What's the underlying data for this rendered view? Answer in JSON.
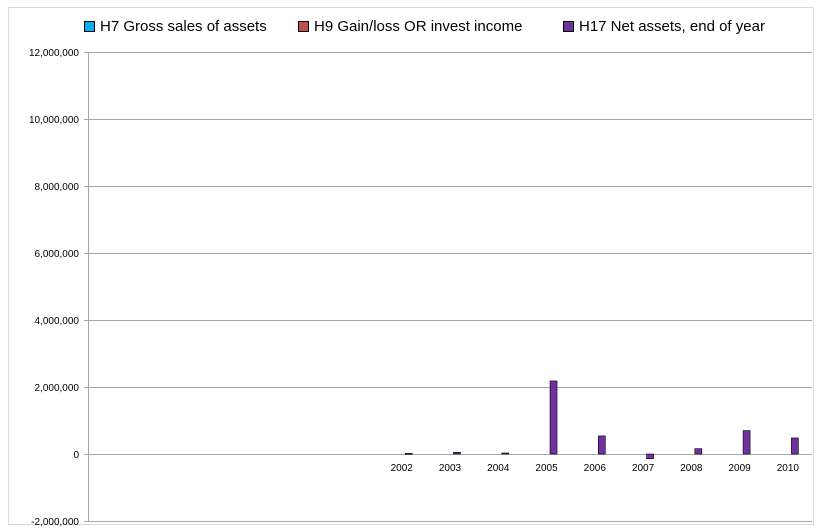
{
  "chart_data": {
    "type": "bar",
    "title": "",
    "xlabel": "",
    "ylabel": "",
    "categories": [
      "",
      "",
      "",
      "",
      "",
      "",
      "2002",
      "2003",
      "2004",
      "2005",
      "2006",
      "2007",
      "2008",
      "2009",
      "2010"
    ],
    "ylim": [
      -2000000,
      12000000
    ],
    "yticks": [
      -2000000,
      0,
      2000000,
      4000000,
      6000000,
      8000000,
      10000000,
      12000000
    ],
    "ytick_labels": [
      "-2,000,000",
      "0",
      "2,000,000",
      "4,000,000",
      "6,000,000",
      "8,000,000",
      "10,000,000",
      "12,000,000"
    ],
    "grid": true,
    "legend_position": "top",
    "series": [
      {
        "name": "H7 Gross sales of assets",
        "color": "#00b0f0",
        "values": [
          null,
          null,
          null,
          null,
          null,
          null,
          0,
          0,
          0,
          0,
          0,
          0,
          0,
          0,
          0
        ]
      },
      {
        "name": "H9 Gain/loss OR invest income",
        "color": "#c0504d",
        "values": [
          null,
          null,
          null,
          null,
          null,
          null,
          0,
          0,
          0,
          0,
          0,
          0,
          0,
          0,
          0
        ]
      },
      {
        "name": "H17 Net assets, end of year",
        "color": "#7030a0",
        "values": [
          null,
          null,
          null,
          null,
          null,
          null,
          20000,
          50000,
          30000,
          2180000,
          540000,
          -140000,
          160000,
          700000,
          480000
        ]
      }
    ]
  }
}
